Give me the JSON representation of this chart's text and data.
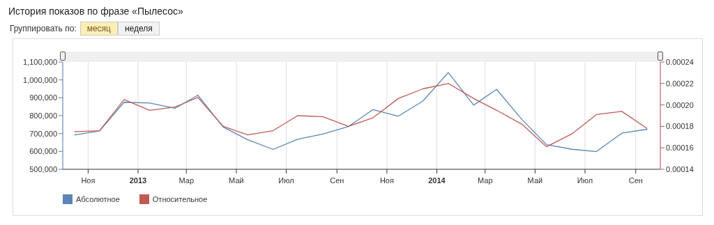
{
  "chart_data": {
    "type": "line",
    "title": "История показов по фразе «Пылесос»",
    "annotations": [
      "Группировать по:",
      "месяц",
      "неделя"
    ],
    "x": [
      "2012-10-15",
      "2012-11-15",
      "2012-12-15",
      "2013-01-15",
      "2013-02-15",
      "2013-03-15",
      "2013-04-15",
      "2013-05-15",
      "2013-06-15",
      "2013-07-15",
      "2013-08-15",
      "2013-09-15",
      "2013-10-15",
      "2013-11-15",
      "2013-12-15",
      "2014-01-15",
      "2014-02-15",
      "2014-03-15",
      "2014-04-15",
      "2014-05-15",
      "2014-06-15",
      "2014-07-15",
      "2014-08-15",
      "2014-09-15"
    ],
    "series": [
      {
        "name": "Абсолютное",
        "color": "#5a85b5",
        "values": [
          691000,
          715000,
          875000,
          871000,
          841000,
          914000,
          736000,
          665000,
          611000,
          668000,
          697000,
          739000,
          834000,
          797000,
          882000,
          1041000,
          859000,
          947000,
          778000,
          638000,
          612000,
          599000,
          702000,
          724000
        ]
      },
      {
        "name": "Относительное",
        "color": "#c05a55",
        "axis": "y2",
        "values": [
          0.000175,
          0.000176,
          0.000205,
          0.000195,
          0.000198,
          0.000207,
          0.00018,
          0.000172,
          0.000176,
          0.00019,
          0.000189,
          0.00018,
          0.000188,
          0.000206,
          0.000215,
          0.00022,
          0.000206,
          0.000195,
          0.000182,
          0.000161,
          0.000173,
          0.000191,
          0.000194,
          0.000178
        ]
      }
    ],
    "xlim": [
      "2012-10-01",
      "2014-10-01"
    ],
    "xticks": [
      {
        "value": "2012-11-01",
        "label": "Ноя"
      },
      {
        "value": "2013-01-01",
        "label": "2013"
      },
      {
        "value": "2013-03-01",
        "label": "Мар"
      },
      {
        "value": "2013-05-01",
        "label": "Май"
      },
      {
        "value": "2013-07-01",
        "label": "Июл"
      },
      {
        "value": "2013-09-01",
        "label": "Сен"
      },
      {
        "value": "2013-11-01",
        "label": "Ноя"
      },
      {
        "value": "2014-01-01",
        "label": "2014"
      },
      {
        "value": "2014-03-01",
        "label": "Мар"
      },
      {
        "value": "2014-05-01",
        "label": "Май"
      },
      {
        "value": "2014-07-01",
        "label": "Июл"
      },
      {
        "value": "2014-09-01",
        "label": "Сен"
      }
    ],
    "ylim": [
      500000,
      1100000
    ],
    "yticks": [
      {
        "value": 500000,
        "label": "500,000"
      },
      {
        "value": 600000,
        "label": "600,000"
      },
      {
        "value": 700000,
        "label": "700,000"
      },
      {
        "value": 800000,
        "label": "800,000"
      },
      {
        "value": 900000,
        "label": "900,000"
      },
      {
        "value": 1000000,
        "label": "1,000,000"
      },
      {
        "value": 1100000,
        "label": "1,100,000"
      }
    ],
    "y2lim": [
      0.00014,
      0.00024
    ],
    "y2ticks": [
      {
        "value": 0.00014,
        "label": "0.00014"
      },
      {
        "value": 0.00016,
        "label": "0.00016"
      },
      {
        "value": 0.00018,
        "label": "0.00018"
      },
      {
        "value": 0.0002,
        "label": "0.00020"
      },
      {
        "value": 0.00022,
        "label": "0.00022"
      },
      {
        "value": 0.00024,
        "label": "0.00024"
      }
    ],
    "grid": "x",
    "legend": "bottom left",
    "marker": "none",
    "line_style": "solid"
  }
}
